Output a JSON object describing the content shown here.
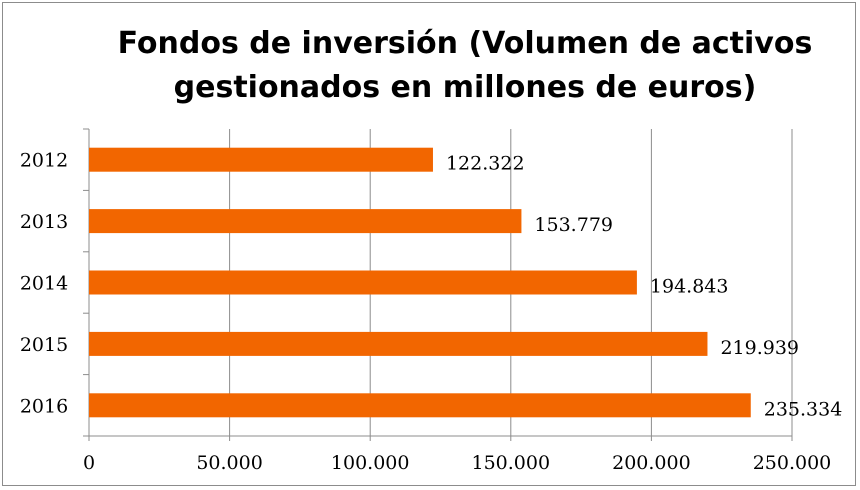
{
  "chart_data": {
    "type": "bar",
    "orientation": "horizontal",
    "title": "Fondos de inversión (Volumen de activos\ngestionados  en millones de euros)",
    "categories": [
      "2012",
      "2013",
      "2014",
      "2015",
      "2016"
    ],
    "values": [
      122322,
      153779,
      194843,
      219939,
      235334
    ],
    "data_labels": [
      "122.322",
      "153.779",
      "194.843",
      "219.939",
      "235.334"
    ],
    "xlim": [
      0,
      250000
    ],
    "x_ticks": [
      0,
      50000,
      100000,
      150000,
      200000,
      250000
    ],
    "x_tick_labels": [
      "0",
      "50.000",
      "100.000",
      "150.000",
      "200.000",
      "250.000"
    ],
    "xlabel": "",
    "ylabel": "",
    "grid": "vertical",
    "legend": "none",
    "bar_color": "#f26600",
    "grid_color": "#8c8c8c"
  }
}
